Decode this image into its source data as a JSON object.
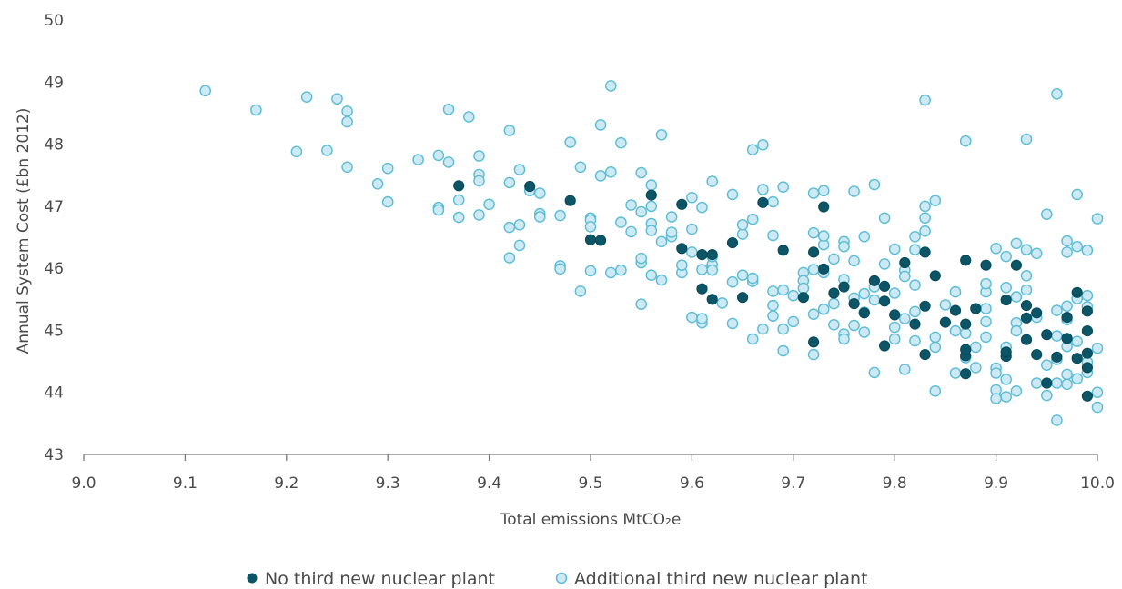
{
  "chart_data": {
    "type": "scatter",
    "xlabel": "Total emissions MtCO₂e",
    "ylabel": "Annual System Cost (£bn 2012)",
    "xlim": [
      9.0,
      10.0
    ],
    "ylim": [
      43,
      50
    ],
    "x_ticks": [
      "9.0",
      "9.1",
      "9.2",
      "9.3",
      "9.4",
      "9.5",
      "9.6",
      "9.7",
      "9.8",
      "9.9",
      "10.0"
    ],
    "y_ticks": [
      "43",
      "44",
      "45",
      "46",
      "47",
      "48",
      "49",
      "50"
    ],
    "grid": false,
    "legend_position": "bottom",
    "series": [
      {
        "name": "No third new nuclear plant",
        "color": "#0b5566",
        "marker": "filled-circle",
        "points": [
          [
            9.37,
            47.33
          ],
          [
            9.44,
            47.32
          ],
          [
            9.48,
            47.09
          ],
          [
            9.5,
            46.46
          ],
          [
            9.51,
            46.45
          ],
          [
            9.56,
            47.18
          ],
          [
            9.59,
            46.32
          ],
          [
            9.59,
            47.03
          ],
          [
            9.61,
            46.22
          ],
          [
            9.61,
            45.67
          ],
          [
            9.62,
            45.5
          ],
          [
            9.62,
            46.22
          ],
          [
            9.64,
            46.41
          ],
          [
            9.65,
            45.53
          ],
          [
            9.67,
            47.06
          ],
          [
            9.69,
            46.29
          ],
          [
            9.71,
            45.53
          ],
          [
            9.72,
            46.26
          ],
          [
            9.72,
            44.81
          ],
          [
            9.73,
            46.99
          ],
          [
            9.73,
            45.99
          ],
          [
            9.74,
            45.6
          ],
          [
            9.75,
            45.7
          ],
          [
            9.76,
            45.43
          ],
          [
            9.77,
            45.28
          ],
          [
            9.78,
            45.8
          ],
          [
            9.79,
            45.71
          ],
          [
            9.79,
            45.47
          ],
          [
            9.79,
            44.75
          ],
          [
            9.8,
            45.25
          ],
          [
            9.81,
            46.09
          ],
          [
            9.82,
            45.1
          ],
          [
            9.83,
            46.26
          ],
          [
            9.83,
            45.39
          ],
          [
            9.83,
            44.61
          ],
          [
            9.84,
            45.88
          ],
          [
            9.85,
            45.13
          ],
          [
            9.86,
            45.32
          ],
          [
            9.87,
            46.13
          ],
          [
            9.87,
            44.3
          ],
          [
            9.87,
            44.59
          ],
          [
            9.87,
            44.69
          ],
          [
            9.87,
            45.1
          ],
          [
            9.88,
            45.35
          ],
          [
            9.89,
            46.05
          ],
          [
            9.91,
            45.49
          ],
          [
            9.91,
            44.58
          ],
          [
            9.91,
            44.65
          ],
          [
            9.92,
            46.05
          ],
          [
            9.93,
            45.4
          ],
          [
            9.93,
            45.2
          ],
          [
            9.93,
            44.85
          ],
          [
            9.94,
            45.28
          ],
          [
            9.94,
            44.61
          ],
          [
            9.95,
            44.93
          ],
          [
            9.95,
            44.15
          ],
          [
            9.96,
            44.57
          ],
          [
            9.97,
            45.21
          ],
          [
            9.97,
            44.87
          ],
          [
            9.98,
            45.61
          ],
          [
            9.98,
            44.55
          ],
          [
            9.99,
            45.31
          ],
          [
            9.99,
            44.63
          ],
          [
            9.99,
            44.4
          ],
          [
            9.99,
            43.94
          ],
          [
            9.99,
            44.99
          ]
        ]
      },
      {
        "name": "Additional third new nuclear plant",
        "color": "#5bbcd6",
        "fill": "#cdeaf4",
        "marker": "open-circle",
        "points": [
          [
            9.12,
            48.86
          ],
          [
            9.17,
            48.55
          ],
          [
            9.21,
            47.88
          ],
          [
            9.22,
            48.76
          ],
          [
            9.24,
            47.9
          ],
          [
            9.25,
            48.73
          ],
          [
            9.26,
            48.53
          ],
          [
            9.26,
            48.36
          ],
          [
            9.26,
            47.63
          ],
          [
            9.29,
            47.36
          ],
          [
            9.3,
            47.61
          ],
          [
            9.3,
            47.07
          ],
          [
            9.33,
            47.75
          ],
          [
            9.35,
            47.82
          ],
          [
            9.35,
            46.98
          ],
          [
            9.35,
            46.94
          ],
          [
            9.36,
            48.56
          ],
          [
            9.36,
            47.71
          ],
          [
            9.37,
            47.1
          ],
          [
            9.37,
            46.82
          ],
          [
            9.38,
            48.44
          ],
          [
            9.39,
            46.86
          ],
          [
            9.39,
            47.51
          ],
          [
            9.39,
            47.81
          ],
          [
            9.39,
            47.41
          ],
          [
            9.4,
            47.03
          ],
          [
            9.42,
            48.22
          ],
          [
            9.42,
            47.38
          ],
          [
            9.42,
            46.66
          ],
          [
            9.42,
            46.17
          ],
          [
            9.43,
            47.59
          ],
          [
            9.43,
            46.7
          ],
          [
            9.43,
            46.37
          ],
          [
            9.44,
            47.25
          ],
          [
            9.45,
            47.21
          ],
          [
            9.45,
            46.88
          ],
          [
            9.45,
            46.83
          ],
          [
            9.47,
            46.85
          ],
          [
            9.47,
            46.04
          ],
          [
            9.47,
            45.99
          ],
          [
            9.48,
            48.03
          ],
          [
            9.49,
            47.63
          ],
          [
            9.49,
            45.63
          ],
          [
            9.5,
            45.96
          ],
          [
            9.5,
            46.81
          ],
          [
            9.5,
            46.78
          ],
          [
            9.5,
            46.67
          ],
          [
            9.51,
            48.31
          ],
          [
            9.51,
            47.49
          ],
          [
            9.52,
            47.55
          ],
          [
            9.52,
            48.94
          ],
          [
            9.52,
            45.93
          ],
          [
            9.53,
            45.97
          ],
          [
            9.53,
            48.02
          ],
          [
            9.53,
            46.74
          ],
          [
            9.54,
            46.59
          ],
          [
            9.54,
            47.02
          ],
          [
            9.55,
            47.54
          ],
          [
            9.55,
            45.42
          ],
          [
            9.55,
            46.91
          ],
          [
            9.55,
            46.09
          ],
          [
            9.55,
            46.16
          ],
          [
            9.56,
            46.72
          ],
          [
            9.56,
            47.0
          ],
          [
            9.56,
            46.61
          ],
          [
            9.56,
            45.89
          ],
          [
            9.56,
            47.34
          ],
          [
            9.57,
            48.15
          ],
          [
            9.57,
            46.43
          ],
          [
            9.57,
            45.81
          ],
          [
            9.58,
            46.83
          ],
          [
            9.58,
            46.51
          ],
          [
            9.58,
            46.58
          ],
          [
            9.59,
            45.93
          ],
          [
            9.59,
            46.05
          ],
          [
            9.6,
            45.21
          ],
          [
            9.6,
            47.14
          ],
          [
            9.6,
            46.63
          ],
          [
            9.6,
            46.26
          ],
          [
            9.61,
            45.12
          ],
          [
            9.61,
            45.19
          ],
          [
            9.61,
            46.98
          ],
          [
            9.61,
            45.98
          ],
          [
            9.62,
            46.06
          ],
          [
            9.62,
            46.19
          ],
          [
            9.62,
            47.4
          ],
          [
            9.62,
            45.97
          ],
          [
            9.63,
            45.44
          ],
          [
            9.64,
            47.19
          ],
          [
            9.64,
            45.11
          ],
          [
            9.64,
            45.78
          ],
          [
            9.65,
            45.89
          ],
          [
            9.65,
            46.55
          ],
          [
            9.65,
            46.7
          ],
          [
            9.66,
            46.79
          ],
          [
            9.66,
            47.91
          ],
          [
            9.66,
            44.86
          ],
          [
            9.66,
            45.79
          ],
          [
            9.66,
            45.84
          ],
          [
            9.67,
            47.99
          ],
          [
            9.67,
            47.27
          ],
          [
            9.67,
            45.02
          ],
          [
            9.68,
            46.53
          ],
          [
            9.68,
            47.07
          ],
          [
            9.68,
            45.63
          ],
          [
            9.68,
            45.23
          ],
          [
            9.68,
            45.4
          ],
          [
            9.69,
            47.31
          ],
          [
            9.69,
            45.65
          ],
          [
            9.69,
            44.67
          ],
          [
            9.69,
            45.02
          ],
          [
            9.7,
            45.14
          ],
          [
            9.7,
            45.56
          ],
          [
            9.71,
            45.93
          ],
          [
            9.71,
            45.8
          ],
          [
            9.71,
            45.68
          ],
          [
            9.72,
            45.98
          ],
          [
            9.72,
            47.21
          ],
          [
            9.72,
            46.57
          ],
          [
            9.72,
            45.26
          ],
          [
            9.72,
            44.61
          ],
          [
            9.73,
            47.25
          ],
          [
            9.73,
            46.38
          ],
          [
            9.73,
            45.93
          ],
          [
            9.73,
            46.52
          ],
          [
            9.73,
            45.34
          ],
          [
            9.74,
            45.09
          ],
          [
            9.74,
            45.43
          ],
          [
            9.74,
            46.15
          ],
          [
            9.75,
            46.43
          ],
          [
            9.75,
            46.35
          ],
          [
            9.75,
            45.82
          ],
          [
            9.75,
            44.94
          ],
          [
            9.75,
            44.86
          ],
          [
            9.76,
            47.24
          ],
          [
            9.76,
            46.12
          ],
          [
            9.76,
            45.52
          ],
          [
            9.76,
            45.08
          ],
          [
            9.77,
            46.51
          ],
          [
            9.77,
            45.59
          ],
          [
            9.77,
            45.29
          ],
          [
            9.77,
            44.97
          ],
          [
            9.78,
            47.35
          ],
          [
            9.78,
            44.32
          ],
          [
            9.78,
            45.49
          ],
          [
            9.78,
            45.7
          ],
          [
            9.79,
            46.81
          ],
          [
            9.79,
            46.07
          ],
          [
            9.8,
            46.31
          ],
          [
            9.8,
            45.6
          ],
          [
            9.8,
            45.05
          ],
          [
            9.8,
            44.86
          ],
          [
            9.81,
            45.97
          ],
          [
            9.81,
            45.19
          ],
          [
            9.81,
            44.37
          ],
          [
            9.81,
            45.87
          ],
          [
            9.82,
            45.73
          ],
          [
            9.82,
            46.3
          ],
          [
            9.82,
            46.51
          ],
          [
            9.82,
            45.3
          ],
          [
            9.82,
            44.83
          ],
          [
            9.83,
            46.81
          ],
          [
            9.83,
            47.0
          ],
          [
            9.83,
            48.71
          ],
          [
            9.83,
            46.6
          ],
          [
            9.84,
            44.02
          ],
          [
            9.84,
            44.73
          ],
          [
            9.84,
            44.89
          ],
          [
            9.84,
            47.09
          ],
          [
            9.85,
            45.41
          ],
          [
            9.86,
            45.62
          ],
          [
            9.86,
            44.99
          ],
          [
            9.86,
            44.31
          ],
          [
            9.87,
            44.56
          ],
          [
            9.87,
            48.05
          ],
          [
            9.87,
            44.95
          ],
          [
            9.88,
            44.73
          ],
          [
            9.88,
            44.4
          ],
          [
            9.89,
            45.35
          ],
          [
            9.89,
            45.62
          ],
          [
            9.89,
            45.75
          ],
          [
            9.89,
            45.14
          ],
          [
            9.89,
            44.89
          ],
          [
            9.9,
            44.04
          ],
          [
            9.9,
            44.39
          ],
          [
            9.9,
            44.31
          ],
          [
            9.9,
            43.9
          ],
          [
            9.9,
            46.32
          ],
          [
            9.91,
            46.19
          ],
          [
            9.91,
            45.69
          ],
          [
            9.91,
            44.73
          ],
          [
            9.91,
            44.21
          ],
          [
            9.91,
            43.93
          ],
          [
            9.92,
            45.54
          ],
          [
            9.92,
            45.12
          ],
          [
            9.92,
            44.99
          ],
          [
            9.92,
            44.02
          ],
          [
            9.92,
            46.4
          ],
          [
            9.93,
            48.08
          ],
          [
            9.93,
            45.88
          ],
          [
            9.93,
            45.65
          ],
          [
            9.93,
            46.3
          ],
          [
            9.94,
            44.15
          ],
          [
            9.94,
            45.21
          ],
          [
            9.94,
            46.24
          ],
          [
            9.95,
            46.87
          ],
          [
            9.95,
            44.44
          ],
          [
            9.95,
            43.95
          ],
          [
            9.96,
            48.81
          ],
          [
            9.96,
            45.32
          ],
          [
            9.96,
            44.91
          ],
          [
            9.96,
            44.53
          ],
          [
            9.96,
            44.15
          ],
          [
            9.96,
            43.55
          ],
          [
            9.97,
            46.44
          ],
          [
            9.97,
            46.26
          ],
          [
            9.97,
            45.39
          ],
          [
            9.97,
            45.17
          ],
          [
            9.97,
            44.74
          ],
          [
            9.97,
            44.29
          ],
          [
            9.97,
            44.13
          ],
          [
            9.98,
            47.19
          ],
          [
            9.98,
            45.51
          ],
          [
            9.98,
            46.35
          ],
          [
            9.98,
            44.82
          ],
          [
            9.98,
            44.22
          ],
          [
            9.99,
            45.38
          ],
          [
            9.99,
            45.56
          ],
          [
            9.99,
            44.49
          ],
          [
            9.99,
            44.32
          ],
          [
            9.99,
            46.29
          ],
          [
            10.0,
            46.8
          ],
          [
            10.0,
            44.0
          ],
          [
            10.0,
            43.76
          ],
          [
            10.0,
            44.71
          ]
        ]
      }
    ]
  }
}
